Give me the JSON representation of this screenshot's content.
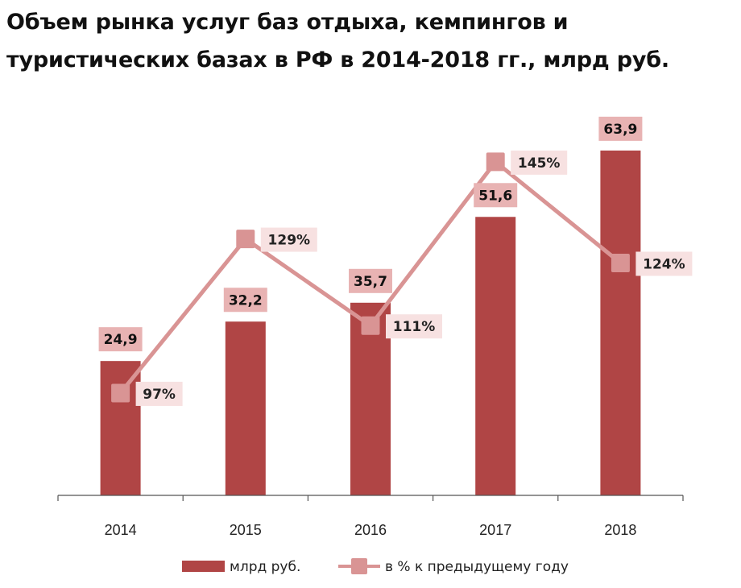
{
  "chart_data": {
    "type": "bar",
    "title": "Объем рынка услуг баз отдыха, кемпингов и туристических базах в РФ в 2014-2018 гг., млрд руб.",
    "categories": [
      "2014",
      "2015",
      "2016",
      "2017",
      "2018"
    ],
    "series": [
      {
        "name": "млрд руб.",
        "type": "bar",
        "values": [
          24.9,
          32.2,
          35.7,
          51.6,
          63.9
        ],
        "labels": [
          "24,9",
          "32,2",
          "35,7",
          "51,6",
          "63,9"
        ],
        "color": "#b04545",
        "label_box_color": "#e8b3b3"
      },
      {
        "name": "в % к предыдущему году",
        "type": "line",
        "values": [
          97,
          129,
          111,
          145,
          124
        ],
        "labels": [
          "97%",
          "129%",
          "111%",
          "145%",
          "124%"
        ],
        "color": "#d99494",
        "label_box_color": "#f7e1e1"
      }
    ],
    "legend_position": "bottom",
    "grid": false
  }
}
